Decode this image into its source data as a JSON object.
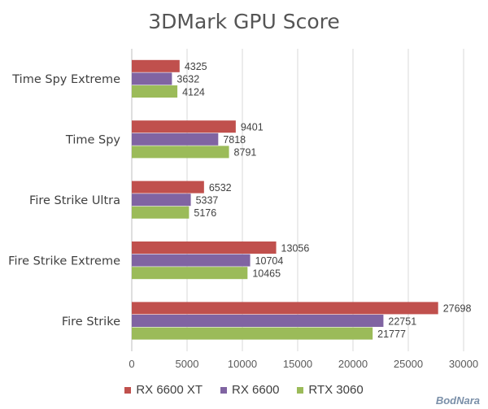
{
  "chart_data": {
    "type": "bar",
    "orientation": "horizontal",
    "title": "3DMark GPU Score",
    "categories": [
      "Time Spy Extreme",
      "Time Spy",
      "Fire Strike Ultra",
      "Fire Strike Extreme",
      "Fire Strike"
    ],
    "series": [
      {
        "name": "RX 6600 XT",
        "color": "#c0504d",
        "values": [
          4325,
          9401,
          6532,
          13056,
          27698
        ]
      },
      {
        "name": "RX 6600",
        "color": "#8064a2",
        "values": [
          3632,
          7818,
          5337,
          10704,
          22751
        ]
      },
      {
        "name": "RTX 3060",
        "color": "#9bbb59",
        "values": [
          4124,
          8791,
          5176,
          10465,
          21777
        ]
      }
    ],
    "xlim": [
      0,
      30000
    ],
    "xticks": [
      0,
      5000,
      10000,
      15000,
      20000,
      25000,
      30000
    ],
    "grid": true,
    "legend": "bottom"
  },
  "watermark": "BodNara"
}
